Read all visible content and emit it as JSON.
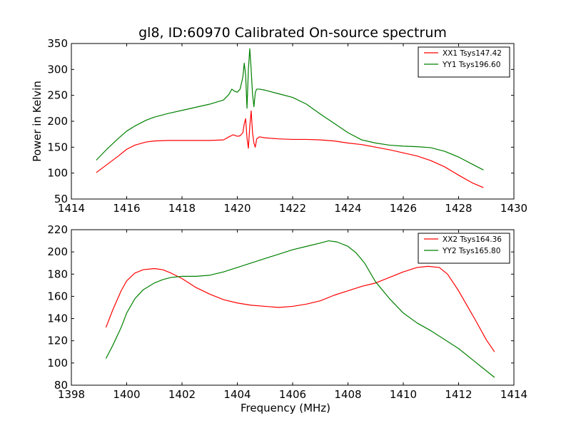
{
  "figure": {
    "title": "gl8, ID:60970 Calibrated On-source spectrum"
  },
  "chart_data": [
    {
      "type": "line",
      "title": "gl8, ID:60970 Calibrated On-source spectrum",
      "xlabel": "",
      "ylabel": "Power in Kelvin",
      "xlim": [
        1414,
        1430
      ],
      "ylim": [
        50,
        350
      ],
      "xticks": [
        1414,
        1416,
        1418,
        1420,
        1422,
        1424,
        1426,
        1428,
        1430
      ],
      "yticks": [
        50,
        100,
        150,
        200,
        250,
        300,
        350
      ],
      "grid": false,
      "legend_position": "top-right",
      "series": [
        {
          "name": "XX1 Tsys147.42",
          "color": "#ff0000",
          "x": [
            1414.9,
            1415.3,
            1415.7,
            1416.0,
            1416.3,
            1416.7,
            1417.0,
            1417.5,
            1418.0,
            1418.5,
            1419.0,
            1419.5,
            1419.7,
            1419.85,
            1420.0,
            1420.1,
            1420.2,
            1420.25,
            1420.3,
            1420.35,
            1420.4,
            1420.45,
            1420.5,
            1420.55,
            1420.6,
            1420.65,
            1420.7,
            1420.8,
            1421.0,
            1421.5,
            1422.0,
            1422.5,
            1423.0,
            1423.5,
            1424.0,
            1424.5,
            1425.0,
            1425.5,
            1426.0,
            1426.5,
            1427.0,
            1427.5,
            1428.0,
            1428.5,
            1428.9
          ],
          "y": [
            101,
            117,
            133,
            146,
            154,
            160,
            162,
            163,
            163,
            163,
            163,
            164,
            170,
            174,
            171,
            172,
            178,
            195,
            205,
            168,
            148,
            190,
            220,
            178,
            158,
            150,
            166,
            170,
            168,
            166,
            165,
            165,
            164,
            162,
            158,
            155,
            150,
            145,
            139,
            133,
            124,
            112,
            96,
            81,
            72
          ]
        },
        {
          "name": "YY1 Tsys196.60",
          "color": "#008000",
          "x": [
            1414.9,
            1415.3,
            1415.7,
            1416.0,
            1416.3,
            1416.7,
            1417.0,
            1417.5,
            1418.0,
            1418.5,
            1419.0,
            1419.5,
            1419.7,
            1419.8,
            1419.9,
            1420.0,
            1420.1,
            1420.2,
            1420.25,
            1420.3,
            1420.35,
            1420.4,
            1420.45,
            1420.5,
            1420.55,
            1420.6,
            1420.65,
            1420.7,
            1420.8,
            1421.0,
            1421.5,
            1422.0,
            1422.5,
            1423.0,
            1423.5,
            1424.0,
            1424.5,
            1425.0,
            1425.5,
            1426.0,
            1426.5,
            1427.0,
            1427.5,
            1428.0,
            1428.5,
            1428.9
          ],
          "y": [
            125,
            147,
            167,
            181,
            191,
            202,
            208,
            215,
            221,
            227,
            233,
            241,
            252,
            262,
            258,
            256,
            262,
            285,
            312,
            290,
            225,
            300,
            340,
            300,
            252,
            228,
            256,
            262,
            262,
            260,
            253,
            246,
            233,
            214,
            196,
            178,
            164,
            158,
            154,
            152,
            151,
            149,
            142,
            131,
            117,
            106
          ]
        }
      ]
    },
    {
      "type": "line",
      "title": "",
      "xlabel": "Frequency (MHz)",
      "ylabel": "",
      "xlim": [
        1398,
        1414
      ],
      "ylim": [
        80,
        220
      ],
      "xticks": [
        1398,
        1400,
        1402,
        1404,
        1406,
        1408,
        1410,
        1412,
        1414
      ],
      "yticks": [
        80,
        100,
        120,
        140,
        160,
        180,
        200,
        220
      ],
      "grid": false,
      "legend_position": "top-right",
      "series": [
        {
          "name": "XX2 Tsys164.36",
          "color": "#ff0000",
          "x": [
            1399.25,
            1399.5,
            1399.8,
            1400.0,
            1400.3,
            1400.6,
            1401.0,
            1401.3,
            1401.6,
            1402.0,
            1402.5,
            1403.0,
            1403.5,
            1404.0,
            1404.5,
            1405.0,
            1405.5,
            1406.0,
            1406.5,
            1407.0,
            1407.5,
            1408.0,
            1408.5,
            1409.0,
            1409.5,
            1410.0,
            1410.5,
            1410.9,
            1411.3,
            1411.6,
            1412.0,
            1412.3,
            1412.6,
            1413.0,
            1413.3
          ],
          "y": [
            132,
            148,
            165,
            174,
            181,
            184,
            185,
            184,
            181,
            176,
            168,
            162,
            157,
            154,
            152,
            151,
            150,
            151,
            153,
            156,
            161,
            165,
            169,
            172,
            177,
            182,
            186,
            187,
            186,
            180,
            165,
            152,
            139,
            121,
            110
          ]
        },
        {
          "name": "YY2 Tsys165.80",
          "color": "#008000",
          "x": [
            1399.25,
            1399.5,
            1399.8,
            1400.0,
            1400.3,
            1400.6,
            1401.0,
            1401.3,
            1401.6,
            1402.0,
            1402.5,
            1403.0,
            1403.5,
            1404.0,
            1404.5,
            1405.0,
            1405.5,
            1406.0,
            1406.5,
            1407.0,
            1407.3,
            1407.6,
            1408.0,
            1408.3,
            1408.6,
            1409.0,
            1409.5,
            1410.0,
            1410.5,
            1411.0,
            1411.5,
            1412.0,
            1412.5,
            1413.0,
            1413.3
          ],
          "y": [
            104,
            116,
            132,
            145,
            158,
            166,
            172,
            175,
            177,
            178,
            178,
            179,
            182,
            186,
            190,
            194,
            198,
            202,
            205,
            208,
            210,
            209,
            205,
            199,
            190,
            173,
            158,
            145,
            136,
            129,
            121,
            113,
            103,
            93,
            87
          ]
        }
      ]
    }
  ]
}
